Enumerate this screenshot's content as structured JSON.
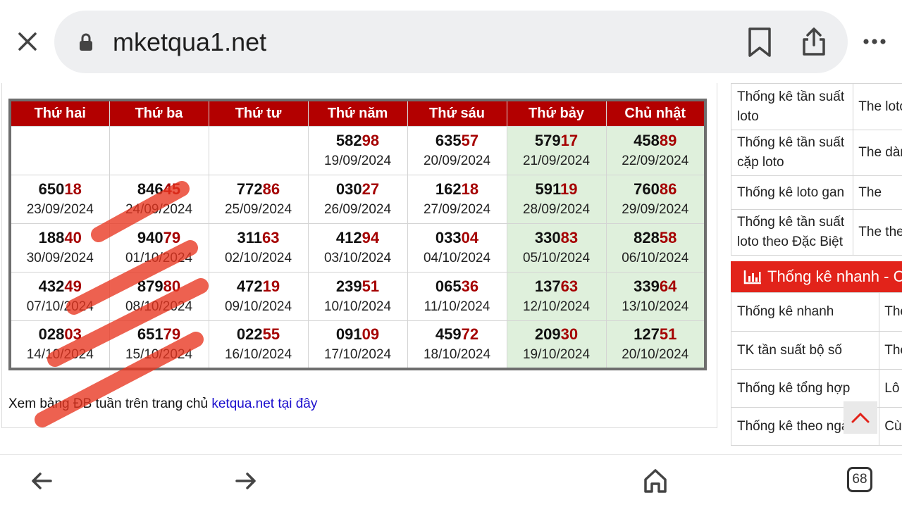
{
  "browser": {
    "url": "mketqua1.net",
    "tab_count": "68"
  },
  "table": {
    "headers": [
      "Thứ hai",
      "Thứ ba",
      "Thứ tư",
      "Thứ năm",
      "Thứ sáu",
      "Thứ bảy",
      "Chủ nhật"
    ],
    "rows": [
      [
        null,
        null,
        null,
        {
          "prefix": "582",
          "suffix": "98",
          "date": "19/09/2024"
        },
        {
          "prefix": "635",
          "suffix": "57",
          "date": "20/09/2024"
        },
        {
          "prefix": "579",
          "suffix": "17",
          "date": "21/09/2024"
        },
        {
          "prefix": "458",
          "suffix": "89",
          "date": "22/09/2024"
        }
      ],
      [
        {
          "prefix": "650",
          "suffix": "18",
          "date": "23/09/2024"
        },
        {
          "prefix": "846",
          "suffix": "45",
          "date": "24/09/2024"
        },
        {
          "prefix": "772",
          "suffix": "86",
          "date": "25/09/2024"
        },
        {
          "prefix": "030",
          "suffix": "27",
          "date": "26/09/2024"
        },
        {
          "prefix": "162",
          "suffix": "18",
          "date": "27/09/2024"
        },
        {
          "prefix": "591",
          "suffix": "19",
          "date": "28/09/2024"
        },
        {
          "prefix": "760",
          "suffix": "86",
          "date": "29/09/2024"
        }
      ],
      [
        {
          "prefix": "188",
          "suffix": "40",
          "date": "30/09/2024"
        },
        {
          "prefix": "940",
          "suffix": "79",
          "date": "01/10/2024"
        },
        {
          "prefix": "311",
          "suffix": "63",
          "date": "02/10/2024"
        },
        {
          "prefix": "412",
          "suffix": "94",
          "date": "03/10/2024"
        },
        {
          "prefix": "033",
          "suffix": "04",
          "date": "04/10/2024"
        },
        {
          "prefix": "330",
          "suffix": "83",
          "date": "05/10/2024"
        },
        {
          "prefix": "828",
          "suffix": "58",
          "date": "06/10/2024"
        }
      ],
      [
        {
          "prefix": "432",
          "suffix": "49",
          "date": "07/10/2024"
        },
        {
          "prefix": "879",
          "suffix": "80",
          "date": "08/10/2024"
        },
        {
          "prefix": "472",
          "suffix": "19",
          "date": "09/10/2024"
        },
        {
          "prefix": "239",
          "suffix": "51",
          "date": "10/10/2024"
        },
        {
          "prefix": "065",
          "suffix": "36",
          "date": "11/10/2024"
        },
        {
          "prefix": "137",
          "suffix": "63",
          "date": "12/10/2024"
        },
        {
          "prefix": "339",
          "suffix": "64",
          "date": "13/10/2024"
        }
      ],
      [
        {
          "prefix": "028",
          "suffix": "03",
          "date": "14/10/2024"
        },
        {
          "prefix": "651",
          "suffix": "79",
          "date": "15/10/2024"
        },
        {
          "prefix": "022",
          "suffix": "55",
          "date": "16/10/2024"
        },
        {
          "prefix": "091",
          "suffix": "09",
          "date": "17/10/2024"
        },
        {
          "prefix": "459",
          "suffix": "72",
          "date": "18/10/2024"
        },
        {
          "prefix": "209",
          "suffix": "30",
          "date": "19/10/2024"
        },
        {
          "prefix": "127",
          "suffix": "51",
          "date": "20/10/2024"
        }
      ]
    ],
    "weekend_color": "#dff0dc",
    "header_color": "#b30000",
    "highlight_color": "#a50000"
  },
  "footer_note": {
    "text": "Xem bảng ĐB tuần trên trang chủ ",
    "link": "ketqua.net tại đây"
  },
  "sidebar": {
    "stats_top": [
      {
        "label": "Thống kê tần suất loto",
        "value": "The loto"
      },
      {
        "label": "Thống kê tần suất cặp loto",
        "value": "The dàn"
      },
      {
        "label": "Thống kê loto gan",
        "value": "The"
      },
      {
        "label": "Thống kê tần suất loto theo Đặc Biệt",
        "value": "The the"
      }
    ],
    "section_title": "Thống kê nhanh - C",
    "stats_bottom": [
      {
        "label": "Thống kê nhanh",
        "value": "The"
      },
      {
        "label": "TK tần suất bộ số",
        "value": "The"
      },
      {
        "label": "Thống kê tổng hợp",
        "value": "Lô"
      },
      {
        "label": "Thống kê theo ngày",
        "value": "Cù"
      }
    ],
    "accent_color": "#e2231a"
  }
}
